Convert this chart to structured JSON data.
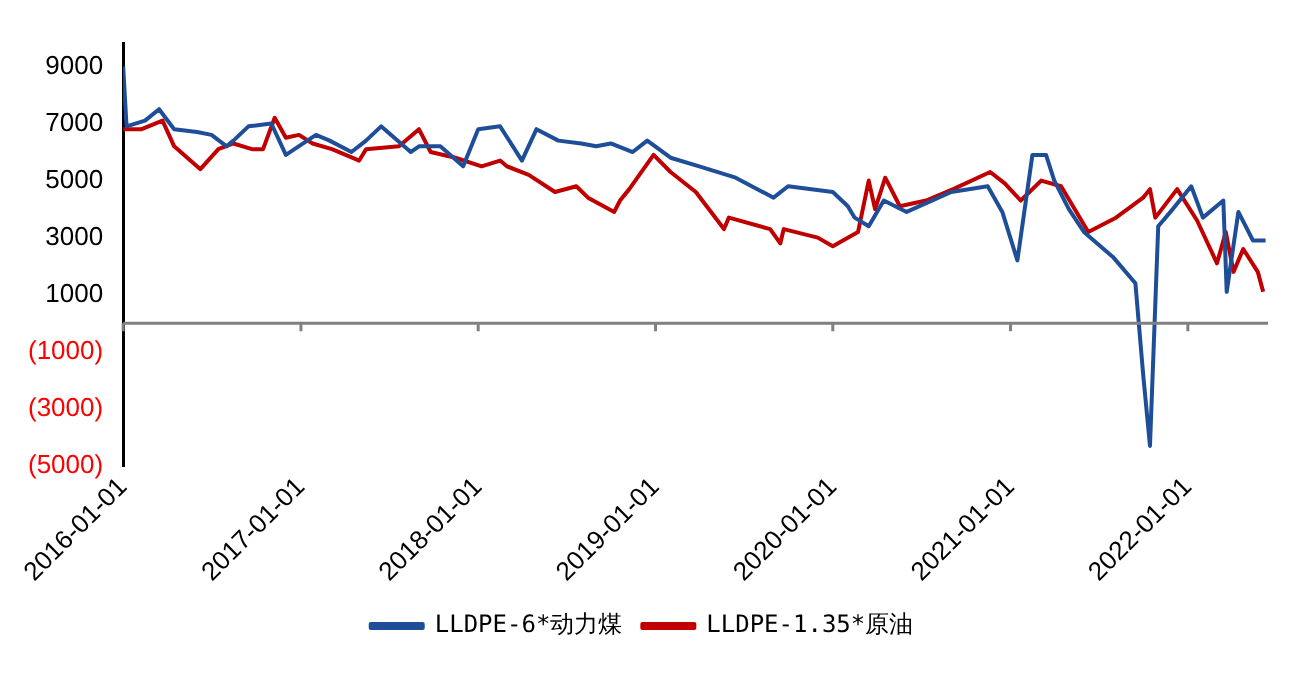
{
  "chart_data": {
    "type": "line",
    "legend": "bottom",
    "grid": false,
    "marker": "none",
    "line_style": "solid",
    "xlim": [
      "2016-01-01",
      "2022-06-15"
    ],
    "xticks": [
      "2016-01-01",
      "2017-01-01",
      "2018-01-01",
      "2019-01-01",
      "2020-01-01",
      "2021-01-01",
      "2022-01-01"
    ],
    "ylim": [
      -5000,
      9800
    ],
    "yticks": [
      9000,
      7000,
      5000,
      3000,
      1000,
      {
        "value": -1000,
        "label": "(1000)"
      },
      {
        "value": -3000,
        "label": "(3000)"
      },
      {
        "value": -5000,
        "label": "(5000)"
      }
    ],
    "series": [
      {
        "name": "LLDPE-6*动力煤",
        "color": "#1f4e99",
        "x": [
          "2016-01-01",
          "2016-01-08",
          "2016-02-15",
          "2016-03-15",
          "2016-04-15",
          "2016-06-01",
          "2016-07-01",
          "2016-08-01",
          "2016-08-15",
          "2016-09-15",
          "2016-11-01",
          "2016-12-01",
          "2017-02-01",
          "2017-03-01",
          "2017-04-15",
          "2017-05-15",
          "2017-06-15",
          "2017-08-15",
          "2017-09-01",
          "2017-10-15",
          "2017-12-01",
          "2018-01-01",
          "2018-02-15",
          "2018-04-01",
          "2018-05-01",
          "2018-06-15",
          "2018-08-01",
          "2018-09-01",
          "2018-10-01",
          "2018-11-15",
          "2018-12-15",
          "2019-02-01",
          "2019-04-01",
          "2019-06-15",
          "2019-09-01",
          "2019-10-01",
          "2020-01-01",
          "2020-02-01",
          "2020-02-15",
          "2020-03-15",
          "2020-04-15",
          "2020-06-01",
          "2020-09-01",
          "2020-11-15",
          "2020-12-15",
          "2021-01-15",
          "2021-02-15",
          "2021-03-15",
          "2021-04-01",
          "2021-05-01",
          "2021-06-01",
          "2021-08-01",
          "2021-09-15",
          "2021-10-01",
          "2021-10-15",
          "2021-11-01",
          "2021-12-01",
          "2022-01-08",
          "2022-02-01",
          "2022-03-15",
          "2022-03-22",
          "2022-04-15",
          "2022-05-15",
          "2022-06-10"
        ],
        "values": [
          9000,
          6900,
          7100,
          7500,
          6800,
          6700,
          6600,
          6200,
          6400,
          6900,
          7000,
          5900,
          6600,
          6400,
          6000,
          6400,
          6900,
          6000,
          6200,
          6200,
          5500,
          6800,
          6900,
          5700,
          6800,
          6400,
          6300,
          6200,
          6300,
          6000,
          6400,
          5800,
          5500,
          5100,
          4400,
          4800,
          4600,
          4100,
          3700,
          3400,
          4300,
          3900,
          4600,
          4800,
          3900,
          2200,
          5900,
          5900,
          5000,
          4000,
          3200,
          2300,
          1400,
          -1800,
          -4300,
          3400,
          4000,
          4800,
          3700,
          4300,
          1100,
          3900,
          2900,
          2900
        ]
      },
      {
        "name": "LLDPE-1.35*原油",
        "color": "#c00000",
        "x": [
          "2016-01-01",
          "2016-02-08",
          "2016-03-22",
          "2016-04-15",
          "2016-06-08",
          "2016-07-15",
          "2016-08-15",
          "2016-09-22",
          "2016-10-15",
          "2016-11-08",
          "2016-12-01",
          "2016-12-28",
          "2017-01-25",
          "2017-03-06",
          "2017-05-01",
          "2017-05-15",
          "2017-07-22",
          "2017-09-01",
          "2017-09-25",
          "2017-11-15",
          "2018-01-08",
          "2018-02-15",
          "2018-03-01",
          "2018-04-15",
          "2018-06-08",
          "2018-07-22",
          "2018-08-15",
          "2018-10-08",
          "2018-10-20",
          "2018-11-08",
          "2018-12-28",
          "2019-02-01",
          "2019-03-25",
          "2019-05-22",
          "2019-06-01",
          "2019-08-25",
          "2019-09-15",
          "2019-09-22",
          "2019-12-01",
          "2020-01-01",
          "2020-02-22",
          "2020-03-15",
          "2020-03-28",
          "2020-04-18",
          "2020-05-18",
          "2020-07-11",
          "2020-09-05",
          "2020-11-20",
          "2020-12-20",
          "2021-01-22",
          "2021-03-05",
          "2021-04-15",
          "2021-06-10",
          "2021-08-06",
          "2021-10-01",
          "2021-10-15",
          "2021-10-26",
          "2021-12-10",
          "2022-01-20",
          "2022-03-02",
          "2022-03-20",
          "2022-04-05",
          "2022-04-25",
          "2022-05-25",
          "2022-06-05"
        ],
        "values": [
          6800,
          6800,
          7100,
          6200,
          5400,
          6100,
          6300,
          6100,
          6100,
          7200,
          6500,
          6600,
          6300,
          6100,
          5700,
          6100,
          6200,
          6800,
          6000,
          5800,
          5500,
          5700,
          5500,
          5200,
          4600,
          4800,
          4400,
          3900,
          4300,
          4700,
          5900,
          5300,
          4600,
          3300,
          3700,
          3300,
          2800,
          3300,
          3000,
          2700,
          3200,
          5000,
          4000,
          5100,
          4100,
          4300,
          4700,
          5300,
          4900,
          4300,
          5000,
          4800,
          3200,
          3700,
          4400,
          4700,
          3700,
          4700,
          3600,
          2100,
          3200,
          1800,
          2600,
          1800,
          1100
        ]
      }
    ]
  }
}
